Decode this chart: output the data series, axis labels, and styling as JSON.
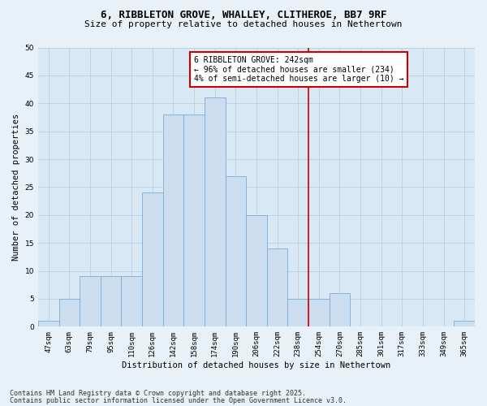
{
  "title_line1": "6, RIBBLETON GROVE, WHALLEY, CLITHEROE, BB7 9RF",
  "title_line2": "Size of property relative to detached houses in Nethertown",
  "xlabel": "Distribution of detached houses by size in Nethertown",
  "ylabel": "Number of detached properties",
  "bar_labels": [
    "47sqm",
    "63sqm",
    "79sqm",
    "95sqm",
    "110sqm",
    "126sqm",
    "142sqm",
    "158sqm",
    "174sqm",
    "190sqm",
    "206sqm",
    "222sqm",
    "238sqm",
    "254sqm",
    "270sqm",
    "285sqm",
    "301sqm",
    "317sqm",
    "333sqm",
    "349sqm",
    "365sqm"
  ],
  "bar_values": [
    1,
    5,
    9,
    9,
    9,
    24,
    38,
    38,
    41,
    27,
    20,
    14,
    5,
    5,
    6,
    0,
    0,
    0,
    0,
    0,
    1
  ],
  "bar_color": "#cdddf0",
  "bar_edge_color": "#7aadd4",
  "vline_color": "#cc0000",
  "annotation_text": "6 RIBBLETON GROVE: 242sqm\n← 96% of detached houses are smaller (234)\n4% of semi-detached houses are larger (10) →",
  "annotation_box_edgecolor": "#cc0000",
  "ylim": [
    0,
    50
  ],
  "yticks": [
    0,
    5,
    10,
    15,
    20,
    25,
    30,
    35,
    40,
    45,
    50
  ],
  "grid_color": "#b8cfe0",
  "bg_color": "#d8e8f4",
  "fig_bg_color": "#e8f0f8",
  "footer_line1": "Contains HM Land Registry data © Crown copyright and database right 2025.",
  "footer_line2": "Contains public sector information licensed under the Open Government Licence v3.0.",
  "title_fontsize": 9,
  "subtitle_fontsize": 8,
  "axis_label_fontsize": 7.5,
  "tick_fontsize": 6.5,
  "annotation_fontsize": 7,
  "footer_fontsize": 6
}
